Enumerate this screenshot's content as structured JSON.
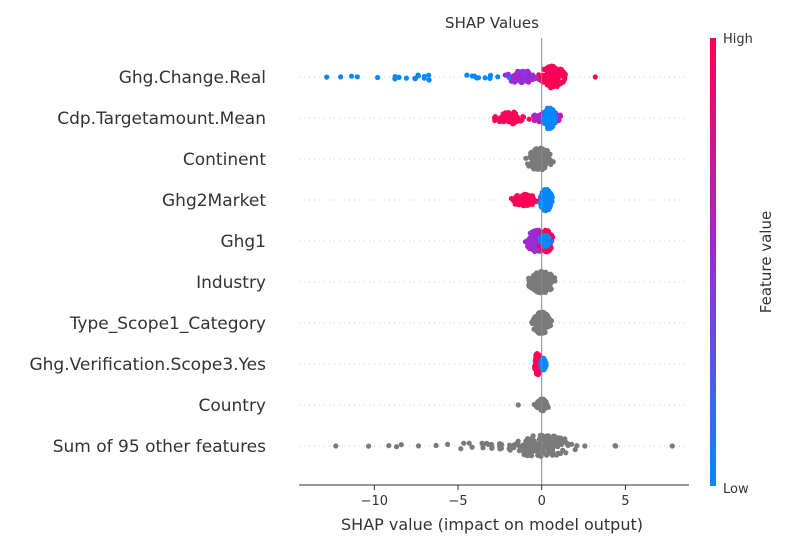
{
  "chart_data": {
    "type": "scatter",
    "subtype": "shap-beeswarm",
    "title": "SHAP Values",
    "xlabel": "SHAP value (impact on model output)",
    "xlim": [
      -14.5,
      8.8
    ],
    "xticks": [
      -10,
      -5,
      0,
      5
    ],
    "grid": false,
    "colorbar": {
      "label": "Feature value",
      "high_label": "High",
      "low_label": "Low",
      "low_color": "#008bfb",
      "mid_color": "#9c2ad8",
      "high_color": "#ff0052"
    },
    "neutral_color": "#7a7a7a",
    "features": [
      {
        "name": "Ghg.Change.Real",
        "colored": true,
        "ranges": [
          {
            "min": -13.0,
            "max": -0.5,
            "value": 0.0,
            "density": "sparse-left"
          },
          {
            "min": -2.5,
            "max": 0.3,
            "value": 0.5,
            "density": "medium"
          },
          {
            "min": -0.3,
            "max": 1.6,
            "value": 1.0,
            "density": "dense"
          }
        ],
        "outliers": [
          {
            "x": 3.2,
            "value": 1.0
          }
        ]
      },
      {
        "name": "Cdp.Targetamount.Mean",
        "colored": true,
        "ranges": [
          {
            "min": -3.2,
            "max": -0.5,
            "value": 1.0,
            "density": "medium"
          },
          {
            "min": -0.8,
            "max": 1.6,
            "value": 0.6,
            "density": "medium"
          },
          {
            "min": 0.0,
            "max": 0.9,
            "value": 0.0,
            "density": "dense"
          }
        ]
      },
      {
        "name": "Continent",
        "colored": false,
        "ranges": [
          {
            "min": -1.2,
            "max": 0.9,
            "value": null,
            "density": "dense"
          }
        ]
      },
      {
        "name": "Ghg2Market",
        "colored": true,
        "ranges": [
          {
            "min": -2.1,
            "max": 0.0,
            "value": 1.0,
            "density": "medium"
          },
          {
            "min": -0.2,
            "max": 0.7,
            "value": 0.0,
            "density": "dense"
          }
        ]
      },
      {
        "name": "Ghg1",
        "colored": true,
        "ranges": [
          {
            "min": -1.1,
            "max": 0.5,
            "value": 0.5,
            "density": "dense"
          },
          {
            "min": -0.3,
            "max": 0.8,
            "value": 1.0,
            "density": "dense"
          },
          {
            "min": -0.2,
            "max": 0.6,
            "value": 0.0,
            "density": "medium"
          }
        ]
      },
      {
        "name": "Industry",
        "colored": false,
        "ranges": [
          {
            "min": -1.0,
            "max": 1.0,
            "value": null,
            "density": "dense"
          }
        ]
      },
      {
        "name": "Type_Scope1_Category",
        "colored": false,
        "ranges": [
          {
            "min": -0.7,
            "max": 0.7,
            "value": null,
            "density": "dense"
          }
        ]
      },
      {
        "name": "Ghg.Verification.Scope3.Yes",
        "colored": true,
        "ranges": [
          {
            "min": -0.5,
            "max": 0.0,
            "value": 1.0,
            "density": "dense"
          },
          {
            "min": -0.1,
            "max": 0.3,
            "value": 0.0,
            "density": "medium"
          }
        ]
      },
      {
        "name": "Country",
        "colored": false,
        "ranges": [
          {
            "min": -0.5,
            "max": 0.5,
            "value": null,
            "density": "medium"
          }
        ],
        "outliers": [
          {
            "x": -1.4,
            "value": null
          }
        ]
      },
      {
        "name": "Sum of 95 other features",
        "colored": false,
        "ranges": [
          {
            "min": -10.5,
            "max": 5.5,
            "value": null,
            "density": "sparse-both"
          },
          {
            "min": -2.5,
            "max": 2.5,
            "value": null,
            "density": "dense"
          }
        ],
        "outliers": [
          {
            "x": -12.3,
            "value": null
          },
          {
            "x": 7.8,
            "value": null
          }
        ]
      }
    ]
  }
}
